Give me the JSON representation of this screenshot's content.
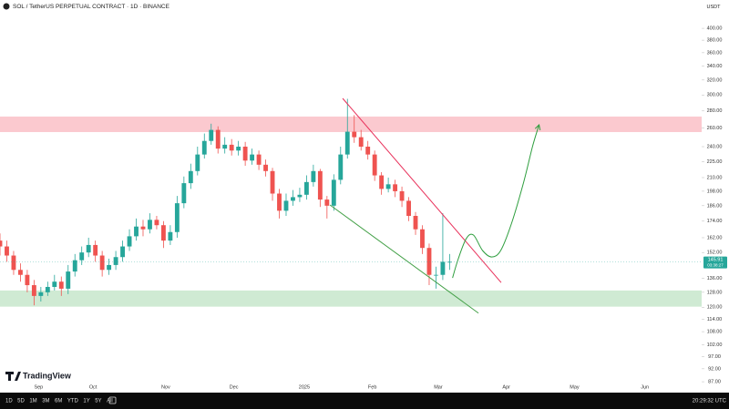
{
  "chart_data": {
    "type": "candlestick",
    "title": "SOL / TetherUS PERPETUAL CONTRACT · 1D · BINANCE",
    "currency": "USDT",
    "watermark": "TradingView",
    "up_color": "#26a69a",
    "down_color": "#ef5350",
    "log_scale": true,
    "x": [
      0,
      3,
      6,
      9,
      12,
      15,
      18,
      21,
      24,
      27,
      30,
      33,
      36,
      39,
      42,
      45,
      48,
      51,
      54,
      57,
      60,
      63,
      66,
      69,
      72,
      75,
      78,
      81,
      84,
      87,
      90,
      93,
      96,
      99,
      102,
      105,
      108,
      111,
      114,
      117,
      120,
      123,
      126,
      129,
      132,
      135,
      138,
      141,
      144,
      147,
      150,
      153,
      156,
      159,
      162,
      165,
      168,
      171,
      174,
      177,
      180,
      183,
      186,
      189,
      192,
      195,
      198
    ],
    "open": [
      160,
      156,
      150,
      141,
      138,
      132,
      126,
      128,
      131,
      134,
      130,
      140,
      147,
      152,
      157,
      150,
      141,
      144,
      149,
      156,
      163,
      170,
      168,
      175,
      171,
      160,
      166,
      188,
      205,
      216,
      232,
      246,
      258,
      238,
      242,
      236,
      240,
      226,
      232,
      222,
      216,
      196,
      182,
      190,
      193,
      195,
      206,
      216,
      191,
      186,
      208,
      232,
      256,
      250,
      240,
      232,
      212,
      200,
      204,
      198,
      190,
      178,
      168,
      155,
      138,
      138,
      146
    ],
    "high": [
      165,
      160,
      153,
      145,
      141,
      135,
      131,
      134,
      138,
      137,
      144,
      151,
      156,
      162,
      160,
      153,
      148,
      153,
      160,
      168,
      176,
      175,
      180,
      178,
      174,
      171,
      194,
      211,
      223,
      240,
      254,
      265,
      262,
      250,
      248,
      246,
      245,
      238,
      236,
      227,
      219,
      200,
      196,
      199,
      201,
      212,
      222,
      218,
      194,
      213,
      240,
      295,
      275,
      258,
      246,
      236,
      215,
      210,
      208,
      202,
      193,
      181,
      171,
      158,
      143,
      180,
      151
    ],
    "low": [
      150,
      146,
      138,
      134,
      128,
      121,
      123,
      126,
      129,
      126,
      127,
      137,
      144,
      149,
      146,
      137,
      138,
      141,
      146,
      153,
      160,
      163,
      165,
      168,
      155,
      157,
      162,
      184,
      200,
      212,
      228,
      242,
      233,
      233,
      231,
      231,
      221,
      222,
      217,
      211,
      190,
      176,
      178,
      186,
      189,
      191,
      202,
      185,
      176,
      182,
      204,
      228,
      244,
      236,
      227,
      207,
      195,
      197,
      193,
      185,
      174,
      164,
      151,
      132,
      130,
      135,
      141
    ],
    "close": [
      156,
      150,
      141,
      138,
      132,
      126,
      128,
      131,
      134,
      130,
      140,
      147,
      152,
      157,
      150,
      141,
      144,
      149,
      156,
      163,
      170,
      168,
      175,
      171,
      160,
      166,
      188,
      205,
      216,
      232,
      246,
      258,
      238,
      242,
      236,
      240,
      226,
      232,
      222,
      216,
      196,
      182,
      190,
      193,
      195,
      206,
      216,
      191,
      186,
      208,
      232,
      256,
      250,
      240,
      232,
      212,
      200,
      204,
      198,
      190,
      178,
      168,
      155,
      138,
      138,
      146,
      146
    ],
    "xlim": [
      0,
      309
    ],
    "xticks": [
      {
        "value": 17,
        "label": "Sep"
      },
      {
        "value": 41,
        "label": "Oct"
      },
      {
        "value": 73,
        "label": "Nov"
      },
      {
        "value": 103,
        "label": "Dec"
      },
      {
        "value": 134,
        "label": "2025"
      },
      {
        "value": 164,
        "label": "Feb"
      },
      {
        "value": 193,
        "label": "Mar"
      },
      {
        "value": 223,
        "label": "Apr"
      },
      {
        "value": 253,
        "label": "May"
      },
      {
        "value": 284,
        "label": "Jun"
      }
    ],
    "ylim": [
      84,
      452
    ],
    "yticks": [
      {
        "value": 400,
        "label": "400.00"
      },
      {
        "value": 380,
        "label": "380.00"
      },
      {
        "value": 360,
        "label": "360.00"
      },
      {
        "value": 340,
        "label": "340.00"
      },
      {
        "value": 320,
        "label": "320.00"
      },
      {
        "value": 300,
        "label": "300.00"
      },
      {
        "value": 280,
        "label": "280.00"
      },
      {
        "value": 260,
        "label": "260.00"
      },
      {
        "value": 240,
        "label": "240.00"
      },
      {
        "value": 225,
        "label": "225.00"
      },
      {
        "value": 210,
        "label": "210.00"
      },
      {
        "value": 198,
        "label": "198.00"
      },
      {
        "value": 186,
        "label": "186.00"
      },
      {
        "value": 174,
        "label": "174.00"
      },
      {
        "value": 162,
        "label": "162.00"
      },
      {
        "value": 152,
        "label": "152.00"
      },
      {
        "value": 136,
        "label": "136.00"
      },
      {
        "value": 128,
        "label": "128.00"
      },
      {
        "value": 120,
        "label": "120.00"
      },
      {
        "value": 114,
        "label": "114.00"
      },
      {
        "value": 108,
        "label": "108.00"
      },
      {
        "value": 102,
        "label": "102.00"
      },
      {
        "value": 97,
        "label": "97.00"
      },
      {
        "value": 92,
        "label": "92.00"
      },
      {
        "value": 87,
        "label": "87.00"
      }
    ],
    "last_price": 145.91,
    "countdown": "03:38:27",
    "last_price_color": "#26a69a",
    "zones": [
      {
        "range": [
          255.6,
          273.3
        ],
        "color": "#fbc9cf"
      },
      {
        "range": [
          120.3,
          129.0
        ],
        "color": "#cfead3"
      }
    ],
    "trend_lines": [
      {
        "x": [
          150.9,
          220.7
        ],
        "y": [
          295.6,
          133.5
        ],
        "color": "#e8305a"
      },
      {
        "x": [
          145.3,
          210.7
        ],
        "y": [
          186.6,
          117.0
        ],
        "color": "#43a047"
      }
    ],
    "projection": {
      "x": [
        199.3,
        201.7,
        205.3,
        208.5,
        212.5,
        216.5,
        220.5,
        225.3,
        230.6,
        234.6,
        237.4
      ],
      "y": [
        136.2,
        147.4,
        161.3,
        163.9,
        153.3,
        149.1,
        153.3,
        172.5,
        205.8,
        240.9,
        263.7
      ],
      "color": "#2e9e3e"
    },
    "toolbar": {
      "ranges": [
        "1D",
        "5D",
        "1M",
        "3M",
        "6M",
        "YTD",
        "1Y",
        "5Y",
        "All"
      ],
      "clock": "20:29:32 UTC"
    }
  }
}
